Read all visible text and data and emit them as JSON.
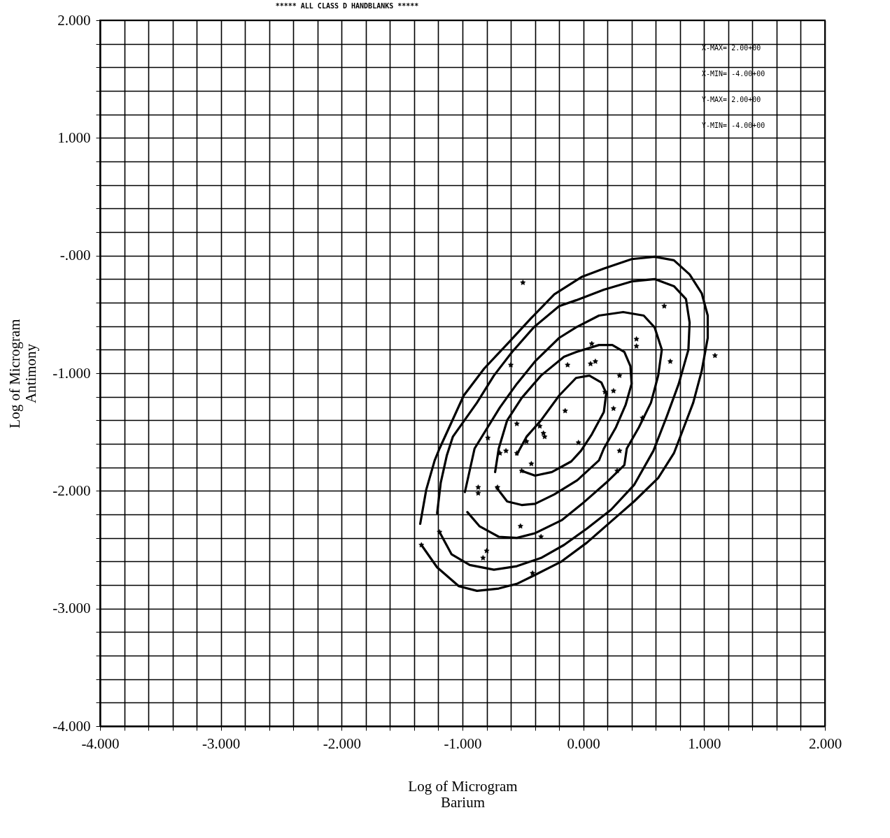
{
  "chart_data": {
    "type": "scatter",
    "title": "***** ALL CLASS D HANDBLANKS *****",
    "xlabel": "Log of Microgram Barium",
    "ylabel": "Log of Microgram Antimony",
    "annotations": [
      "X-MAX= 2.00+00",
      "X-MIN= -4.00+00",
      "Y-MAX= 2.00+00",
      "Y-MIN= -4.00+00"
    ],
    "xlim": [
      -4,
      2
    ],
    "ylim": [
      -4,
      2
    ],
    "xticks": [
      {
        "value": -4,
        "label": "-4.000"
      },
      {
        "value": -3.8,
        "label": null
      },
      {
        "value": -3.6,
        "label": null
      },
      {
        "value": -3.4,
        "label": null
      },
      {
        "value": -3.2,
        "label": null
      },
      {
        "value": -3,
        "label": "-3.000"
      },
      {
        "value": -2.8,
        "label": null
      },
      {
        "value": -2.6,
        "label": null
      },
      {
        "value": -2.4,
        "label": null
      },
      {
        "value": -2.2,
        "label": null
      },
      {
        "value": -2,
        "label": "-2.000"
      },
      {
        "value": -1.8,
        "label": null
      },
      {
        "value": -1.6,
        "label": null
      },
      {
        "value": -1.4,
        "label": null
      },
      {
        "value": -1.2,
        "label": null
      },
      {
        "value": -1,
        "label": "-1.000"
      },
      {
        "value": -0.8,
        "label": null
      },
      {
        "value": -0.6,
        "label": null
      },
      {
        "value": -0.4,
        "label": null
      },
      {
        "value": -0.2,
        "label": null
      },
      {
        "value": 0,
        "label": "0.000"
      },
      {
        "value": 0.2,
        "label": null
      },
      {
        "value": 0.4,
        "label": null
      },
      {
        "value": 0.6,
        "label": null
      },
      {
        "value": 0.8,
        "label": null
      },
      {
        "value": 1,
        "label": "1.000"
      },
      {
        "value": 1.2,
        "label": null
      },
      {
        "value": 1.4,
        "label": null
      },
      {
        "value": 1.6,
        "label": null
      },
      {
        "value": 1.8,
        "label": null
      },
      {
        "value": 2,
        "label": "2.000"
      }
    ],
    "yticks": [
      {
        "value": -4,
        "label": "-4.000"
      },
      {
        "value": -3.8,
        "label": null
      },
      {
        "value": -3.6,
        "label": null
      },
      {
        "value": -3.4,
        "label": null
      },
      {
        "value": -3.2,
        "label": null
      },
      {
        "value": -3,
        "label": "-3.000"
      },
      {
        "value": -2.8,
        "label": null
      },
      {
        "value": -2.6,
        "label": null
      },
      {
        "value": -2.4,
        "label": null
      },
      {
        "value": -2.2,
        "label": null
      },
      {
        "value": -2,
        "label": "-2.000"
      },
      {
        "value": -1.8,
        "label": null
      },
      {
        "value": -1.6,
        "label": null
      },
      {
        "value": -1.4,
        "label": null
      },
      {
        "value": -1.2,
        "label": null
      },
      {
        "value": -1,
        "label": "-1.000"
      },
      {
        "value": -0.8,
        "label": null
      },
      {
        "value": -0.6,
        "label": null
      },
      {
        "value": -0.4,
        "label": null
      },
      {
        "value": -0.2,
        "label": null
      },
      {
        "value": 0,
        "label": "-.000"
      },
      {
        "value": 0.2,
        "label": null
      },
      {
        "value": 0.4,
        "label": null
      },
      {
        "value": 0.6,
        "label": null
      },
      {
        "value": 0.8,
        "label": null
      },
      {
        "value": 1,
        "label": "1.000"
      },
      {
        "value": 1.2,
        "label": null
      },
      {
        "value": 1.4,
        "label": null
      },
      {
        "value": 1.6,
        "label": null
      },
      {
        "value": 1.8,
        "label": null
      },
      {
        "value": 2,
        "label": "2.000"
      }
    ],
    "grid": true,
    "line_style": "solid",
    "series": [
      {
        "type": "scatter",
        "marker": "star",
        "color": "#000000",
        "x": [
          -0.5,
          -0.6,
          -0.13,
          0.07,
          0.06,
          0.1,
          0.18,
          0.25,
          -0.15,
          -0.55,
          -0.36,
          -0.33,
          -0.32,
          -0.79,
          -0.47,
          -0.04,
          -0.69,
          -0.64,
          -0.55,
          -0.43,
          0.3,
          0.28,
          -0.87,
          -0.87,
          -0.71,
          -0.52,
          -0.35,
          -0.8,
          -0.83,
          -0.42,
          0.67,
          0.44,
          0.44,
          0.72,
          1.09,
          0.3,
          0.25,
          0.49,
          -1.34,
          -1.19,
          -0.51
        ],
        "values": [
          -0.23,
          -0.93,
          -0.93,
          -0.75,
          -0.92,
          -0.9,
          -1.16,
          -1.15,
          -1.32,
          -1.43,
          -1.45,
          -1.51,
          -1.54,
          -1.55,
          -1.58,
          -1.59,
          -1.68,
          -1.66,
          -1.68,
          -1.77,
          -1.66,
          -1.83,
          -1.97,
          -2.02,
          -1.97,
          -2.3,
          -2.39,
          -2.51,
          -2.57,
          -2.7,
          -0.43,
          -0.71,
          -0.77,
          -0.9,
          -0.85,
          -1.02,
          -1.3,
          -1.38,
          -2.46,
          -2.35,
          -1.83
        ]
      },
      {
        "type": "line",
        "color": "#000000",
        "x": [
          -1.35,
          -1.3,
          -1.23,
          -1.19,
          -0.99,
          -0.82,
          -0.61,
          -0.43,
          -0.24,
          -0.01,
          0.17,
          0.4,
          0.59,
          0.75,
          0.88,
          0.98,
          1.03,
          1.03,
          0.98,
          0.91,
          0.81,
          0.75,
          0.62,
          0.42,
          0.23,
          0.03,
          -0.18,
          -0.41,
          -0.55,
          -0.7,
          -0.88,
          -1.03,
          -1.21,
          -1.34
        ],
        "values": [
          -2.28,
          -1.99,
          -1.74,
          -1.64,
          -1.19,
          -0.96,
          -0.73,
          -0.53,
          -0.33,
          -0.18,
          -0.11,
          -0.03,
          -0.01,
          -0.04,
          -0.16,
          -0.32,
          -0.51,
          -0.7,
          -0.98,
          -1.25,
          -1.52,
          -1.68,
          -1.89,
          -2.09,
          -2.26,
          -2.44,
          -2.6,
          -2.72,
          -2.79,
          -2.83,
          -2.85,
          -2.81,
          -2.65,
          -2.46
        ]
      },
      {
        "type": "line",
        "color": "#000000",
        "x": [
          -1.21,
          -1.18,
          -1.13,
          -1.08,
          -0.88,
          -0.74,
          -0.59,
          -0.41,
          -0.2,
          -0.06,
          0.17,
          0.4,
          0.59,
          0.75,
          0.85,
          0.88,
          0.87,
          0.79,
          0.69,
          0.58,
          0.42,
          0.23,
          0.03,
          -0.16,
          -0.35,
          -0.55,
          -0.74,
          -0.94,
          -1.09,
          -1.19
        ],
        "values": [
          -2.19,
          -1.93,
          -1.7,
          -1.54,
          -1.25,
          -1.02,
          -0.82,
          -0.61,
          -0.43,
          -0.38,
          -0.29,
          -0.22,
          -0.2,
          -0.26,
          -0.37,
          -0.57,
          -0.8,
          -1.09,
          -1.37,
          -1.66,
          -1.95,
          -2.16,
          -2.32,
          -2.46,
          -2.57,
          -2.64,
          -2.67,
          -2.63,
          -2.54,
          -2.35
        ]
      },
      {
        "type": "line",
        "color": "#000000",
        "x": [
          -0.98,
          -0.9,
          -0.69,
          -0.55,
          -0.4,
          -0.2,
          -0.06,
          0.13,
          0.33,
          0.5,
          0.59,
          0.65,
          0.62,
          0.56,
          0.46,
          0.36,
          0.34,
          0.19,
          -0.01,
          -0.18,
          -0.4,
          -0.55,
          -0.7,
          -0.86,
          -0.96
        ],
        "values": [
          -2.01,
          -1.64,
          -1.29,
          -1.09,
          -0.9,
          -0.7,
          -0.61,
          -0.51,
          -0.48,
          -0.51,
          -0.61,
          -0.8,
          -1.02,
          -1.25,
          -1.46,
          -1.64,
          -1.78,
          -1.93,
          -2.11,
          -2.25,
          -2.36,
          -2.4,
          -2.39,
          -2.3,
          -2.18
        ]
      },
      {
        "type": "line",
        "color": "#000000",
        "x": [
          -0.73,
          -0.7,
          -0.63,
          -0.51,
          -0.35,
          -0.16,
          -0.06,
          0.13,
          0.24,
          0.34,
          0.39,
          0.4,
          0.35,
          0.27,
          0.17,
          0.13,
          -0.05,
          -0.24,
          -0.4,
          -0.51,
          -0.63,
          -0.72
        ],
        "values": [
          -1.84,
          -1.64,
          -1.4,
          -1.21,
          -1.02,
          -0.86,
          -0.82,
          -0.76,
          -0.76,
          -0.82,
          -0.94,
          -1.09,
          -1.27,
          -1.46,
          -1.64,
          -1.74,
          -1.91,
          -2.03,
          -2.11,
          -2.12,
          -2.09,
          -1.97
        ]
      },
      {
        "type": "line",
        "color": "#000000",
        "x": [
          -0.55,
          -0.47,
          -0.35,
          -0.2,
          -0.06,
          0.05,
          0.15,
          0.19,
          0.17,
          0.07,
          -0.02,
          -0.1,
          -0.26,
          -0.4,
          -0.51
        ],
        "values": [
          -1.69,
          -1.54,
          -1.4,
          -1.19,
          -1.04,
          -1.02,
          -1.08,
          -1.17,
          -1.33,
          -1.52,
          -1.66,
          -1.75,
          -1.84,
          -1.87,
          -1.83
        ]
      }
    ]
  }
}
